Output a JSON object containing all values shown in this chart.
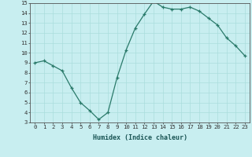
{
  "x": [
    0,
    1,
    2,
    3,
    4,
    5,
    6,
    7,
    8,
    9,
    10,
    11,
    12,
    13,
    14,
    15,
    16,
    17,
    18,
    19,
    20,
    21,
    22,
    23
  ],
  "y": [
    9.0,
    9.2,
    8.7,
    8.2,
    6.5,
    5.0,
    4.2,
    3.3,
    4.0,
    7.5,
    10.3,
    12.5,
    13.9,
    15.2,
    14.6,
    14.4,
    14.4,
    14.6,
    14.2,
    13.5,
    12.8,
    11.5,
    10.7,
    9.7
  ],
  "xlabel": "Humidex (Indice chaleur)",
  "ylim": [
    3,
    15
  ],
  "xlim": [
    -0.5,
    23.5
  ],
  "yticks": [
    3,
    4,
    5,
    6,
    7,
    8,
    9,
    10,
    11,
    12,
    13,
    14,
    15
  ],
  "xticks": [
    0,
    1,
    2,
    3,
    4,
    5,
    6,
    7,
    8,
    9,
    10,
    11,
    12,
    13,
    14,
    15,
    16,
    17,
    18,
    19,
    20,
    21,
    22,
    23
  ],
  "line_color": "#2a7a6a",
  "marker_color": "#2a7a6a",
  "bg_color": "#c8eef0",
  "grid_color": "#aadddd",
  "xlabel_fontsize": 6.0,
  "tick_fontsize": 5.2
}
